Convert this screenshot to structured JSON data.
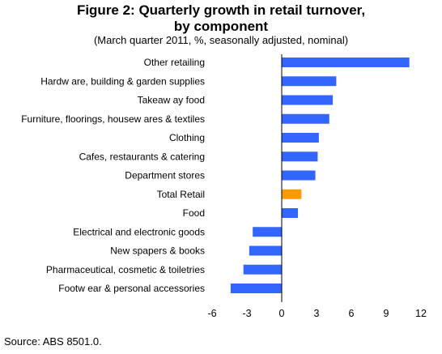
{
  "chart_data": {
    "type": "bar",
    "orientation": "horizontal",
    "title_line1": "Figure 2: Quarterly growth in retail turnover,",
    "title_line2": "by component",
    "subtitle": "(March quarter 2011, %, seasonally adjusted, nominal)",
    "categories": [
      "Other retailing",
      "Hardw are, building & garden supplies",
      "Takeaw ay food",
      "Furniture, floorings, housew ares & textiles",
      "Clothing",
      "Cafes, restaurants & catering",
      "Department stores",
      "Total Retail",
      "Food",
      "Electrical and electronic goods",
      "New spapers & books",
      "Pharmaceutical, cosmetic & toiletries",
      "Footw ear & personal accessories"
    ],
    "values": [
      11.0,
      4.7,
      4.4,
      4.1,
      3.2,
      3.1,
      2.9,
      1.7,
      1.4,
      -2.5,
      -2.8,
      -3.3,
      -4.4
    ],
    "highlight": "Total Retail",
    "colors": {
      "bar": "#3366ff",
      "highlight": "#ff9900"
    },
    "xlim": [
      -6,
      12
    ],
    "xticks": [
      "-6",
      "-3",
      "0",
      "3",
      "6",
      "9",
      "12"
    ],
    "grid": false
  },
  "source": "Source: ABS 8501.0."
}
